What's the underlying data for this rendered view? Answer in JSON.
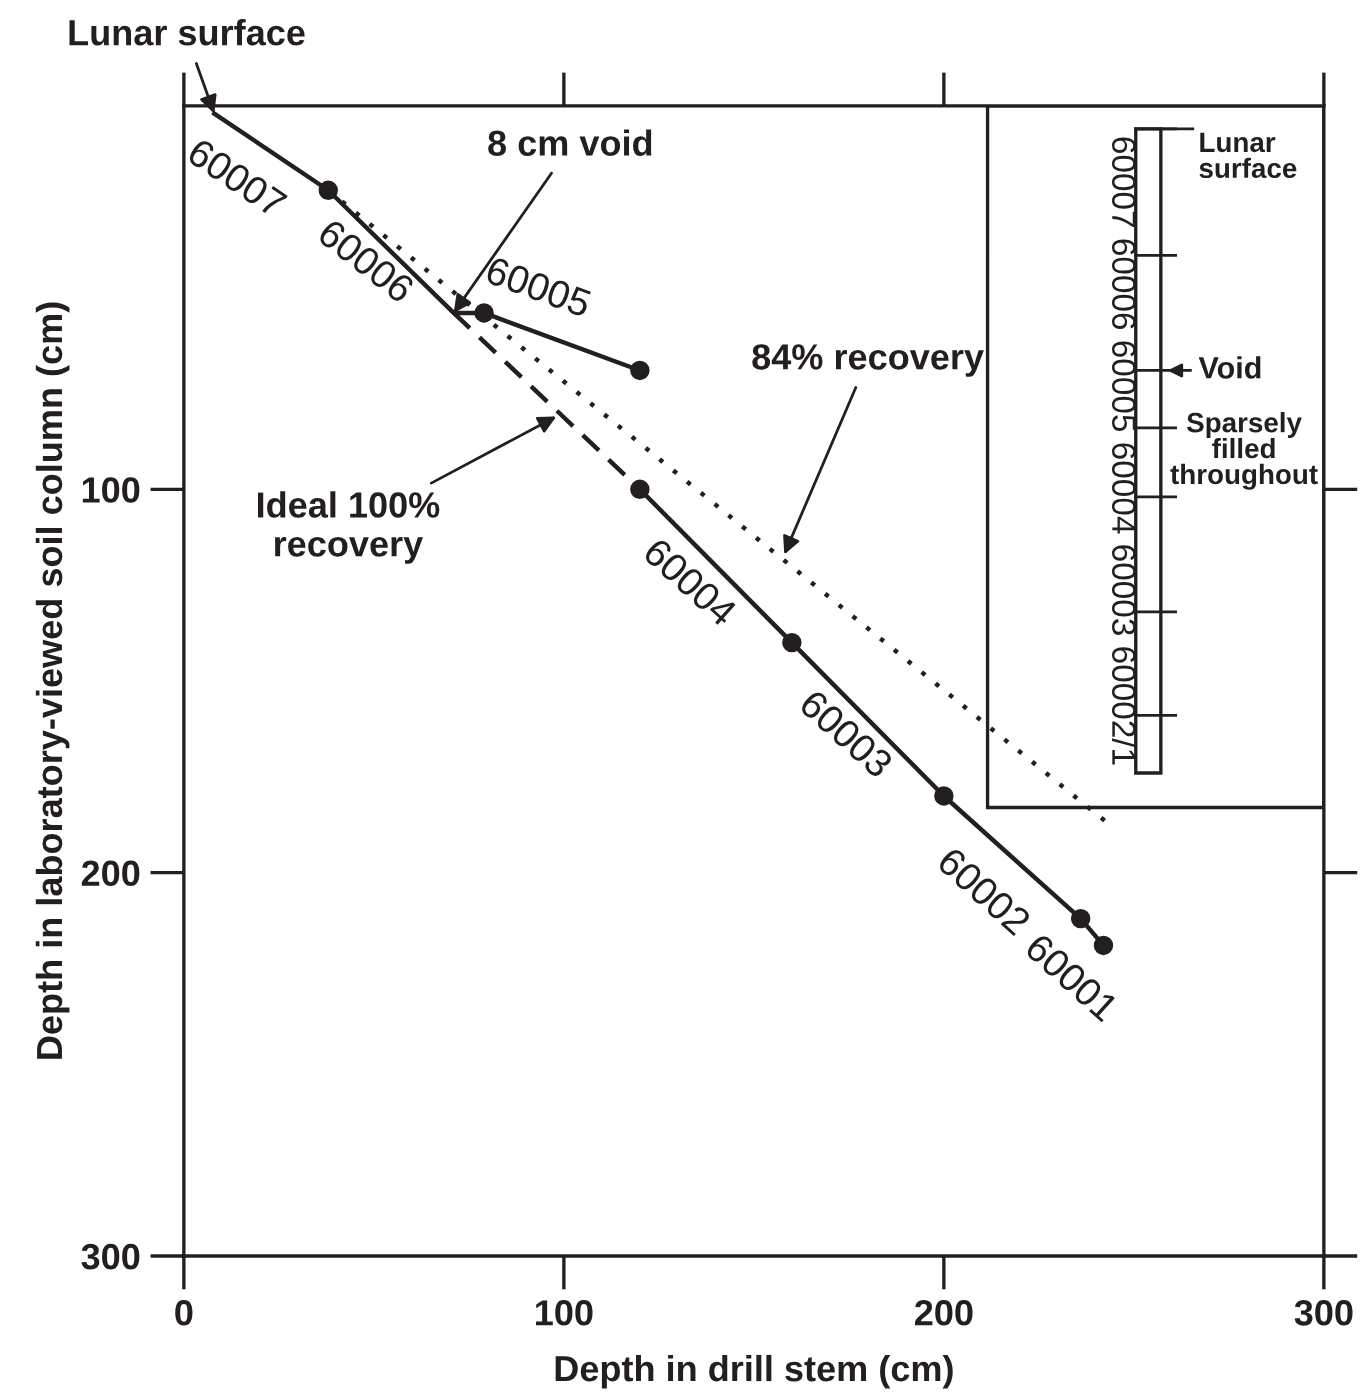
{
  "chart_data": {
    "type": "line",
    "xlabel": "Depth in drill stem (cm)",
    "ylabel": "Depth in laboratory-viewed soil column (cm)",
    "xlim": [
      0,
      300
    ],
    "ylim": [
      300,
      0
    ],
    "xticks": [
      0,
      100,
      200,
      300
    ],
    "yticks": [
      100,
      200,
      300
    ],
    "grid": false,
    "series": [
      {
        "color": "#231f20",
        "line_style": "solid",
        "marker": "none",
        "x": [
          8,
          38,
          71,
          79,
          120
        ],
        "values": [
          2,
          22,
          54,
          54,
          69
        ]
      },
      {
        "type": "scatter",
        "color": "#231f20",
        "marker": "circle",
        "x": [
          38,
          79,
          120
        ],
        "values": [
          22,
          54,
          69
        ]
      },
      {
        "type": "line",
        "color": "#231f20",
        "line_style": "solid",
        "marker": "circle",
        "x": [
          120,
          160,
          200,
          236,
          242
        ],
        "values": [
          100,
          140,
          180,
          212,
          219
        ]
      },
      {
        "type": "line",
        "color": "#231f20",
        "line_style": "dashed",
        "marker": "none",
        "x": [
          71,
          120
        ],
        "values": [
          54,
          100
        ]
      },
      {
        "type": "line",
        "color": "#231f20",
        "line_style": "dotted",
        "marker": "none",
        "x": [
          38,
          243
        ],
        "values": [
          22,
          187
        ]
      }
    ],
    "annotations": [
      {
        "text": "Lunar surface",
        "x": 8,
        "y": 2
      },
      {
        "text": "8 cm void",
        "x": 71,
        "y": 54
      },
      {
        "text": "84% recovery",
        "x": 158,
        "y": 117
      },
      {
        "text": "Ideal 100%\nrecovery",
        "x": 98,
        "y": 81
      },
      "60007",
      "60006",
      "60005",
      "60004",
      "60003",
      "60002",
      "60001",
      "60007 60006 60005 60004 60003 60002/1",
      "Lunar\nsurface",
      "Void",
      "Sparsely\nfilled\nthroughout"
    ]
  }
}
